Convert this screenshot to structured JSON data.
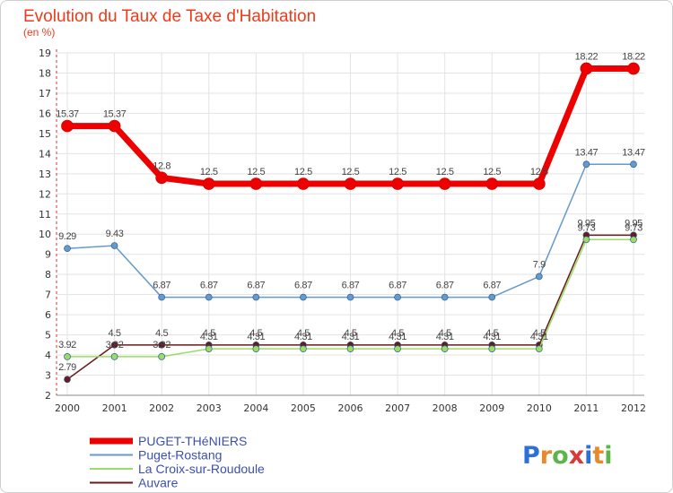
{
  "chart_data": {
    "type": "line",
    "title": "Evolution du Taux de Taxe d'Habitation",
    "subtitle": "(en %)",
    "x": [
      "2000",
      "2001",
      "2002",
      "2003",
      "2004",
      "2005",
      "2006",
      "2007",
      "2008",
      "2009",
      "2010",
      "2011",
      "2012"
    ],
    "yticks": [
      "2",
      "3",
      "4",
      "5",
      "6",
      "7",
      "8",
      "9",
      "10",
      "11",
      "12",
      "13",
      "14",
      "15",
      "16",
      "17",
      "18",
      "19"
    ],
    "ylim": [
      2,
      19
    ],
    "grid": true,
    "legend_position": "bottom-left",
    "series": [
      {
        "name": "Auvare",
        "color": "#6b1a1a",
        "values": [
          2.79,
          4.5,
          4.5,
          4.5,
          4.5,
          4.5,
          4.5,
          4.5,
          4.5,
          4.5,
          4.5,
          9.95,
          9.95
        ],
        "labels": [
          "2.79",
          "4.5",
          "4.5",
          "4.5",
          "4.5",
          "4.5",
          "4.5",
          "4.5",
          "4.5",
          "4.5",
          "4.5",
          "9.95",
          "9.95"
        ]
      },
      {
        "name": "La Croix-sur-Roudoule",
        "color": "#99dd66",
        "values": [
          3.92,
          3.92,
          3.92,
          4.31,
          4.31,
          4.31,
          4.31,
          4.31,
          4.31,
          4.31,
          4.31,
          9.73,
          9.73
        ],
        "labels": [
          "3.92",
          "3.92",
          "3.92",
          "4.31",
          "4.31",
          "4.31",
          "4.31",
          "4.31",
          "4.31",
          "4.31",
          "4.31",
          "9.73",
          "9.73"
        ]
      },
      {
        "name": "Puget-Rostang",
        "color": "#6699cc",
        "values": [
          9.29,
          9.43,
          6.87,
          6.87,
          6.87,
          6.87,
          6.87,
          6.87,
          6.87,
          6.87,
          7.9,
          13.47,
          13.47
        ],
        "labels": [
          "9.29",
          "9.43",
          "6.87",
          "6.87",
          "6.87",
          "6.87",
          "6.87",
          "6.87",
          "6.87",
          "6.87",
          "7.9",
          "13.47",
          "13.47"
        ]
      },
      {
        "name": "PUGET-THéNIERS",
        "color": "#ee0000",
        "values": [
          15.37,
          15.37,
          12.8,
          12.5,
          12.5,
          12.5,
          12.5,
          12.5,
          12.5,
          12.5,
          12.5,
          18.22,
          18.22
        ],
        "labels": [
          "15.37",
          "15.37",
          "12.8",
          "12.5",
          "12.5",
          "12.5",
          "12.5",
          "12.5",
          "12.5",
          "12.5",
          "12.5",
          "18.22",
          "18.22"
        ]
      }
    ]
  },
  "legend_order": [
    "PUGET-THéNIERS",
    "Puget-Rostang",
    "La Croix-sur-Roudoule",
    "Auvare"
  ],
  "logo": {
    "text": "Proxiti"
  }
}
